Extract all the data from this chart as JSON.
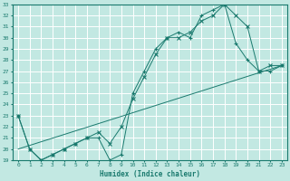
{
  "xlabel": "Humidex (Indice chaleur)",
  "background_color": "#c2e8e2",
  "grid_color": "#ffffff",
  "line_color": "#1a7a6e",
  "xlim": [
    -0.5,
    23.5
  ],
  "ylim": [
    19,
    33
  ],
  "xticks": [
    0,
    1,
    2,
    3,
    4,
    5,
    6,
    7,
    8,
    9,
    10,
    11,
    12,
    13,
    14,
    15,
    16,
    17,
    18,
    19,
    20,
    21,
    22,
    23
  ],
  "yticks": [
    19,
    20,
    21,
    22,
    23,
    24,
    25,
    26,
    27,
    28,
    29,
    30,
    31,
    32,
    33
  ],
  "lines": [
    {
      "x": [
        0,
        1,
        2,
        3,
        4,
        5,
        6,
        7,
        8,
        9,
        10,
        11,
        12,
        13,
        14,
        15,
        16,
        17,
        18,
        19,
        20,
        21,
        22,
        23
      ],
      "y": [
        23,
        20,
        19,
        19.5,
        20,
        20.5,
        21,
        21,
        19,
        19.5,
        25,
        27,
        29,
        30,
        30.5,
        30,
        32,
        32.5,
        33,
        29.5,
        28,
        27,
        27,
        27.5
      ],
      "marker": "+"
    },
    {
      "x": [
        0,
        1,
        2,
        3,
        4,
        5,
        6,
        7,
        8,
        9,
        10,
        11,
        12,
        13,
        14,
        15,
        16,
        17,
        18,
        19,
        20,
        21,
        22,
        23
      ],
      "y": [
        23,
        20,
        19,
        19.5,
        20,
        20.5,
        21,
        21.5,
        20.5,
        22,
        24.5,
        26.5,
        28.5,
        30,
        30,
        30.5,
        31.5,
        32,
        33,
        32,
        31,
        27,
        27.5,
        27.5
      ],
      "marker": "x"
    },
    {
      "x": [
        0,
        23
      ],
      "y": [
        20,
        27.5
      ],
      "marker": null
    }
  ]
}
